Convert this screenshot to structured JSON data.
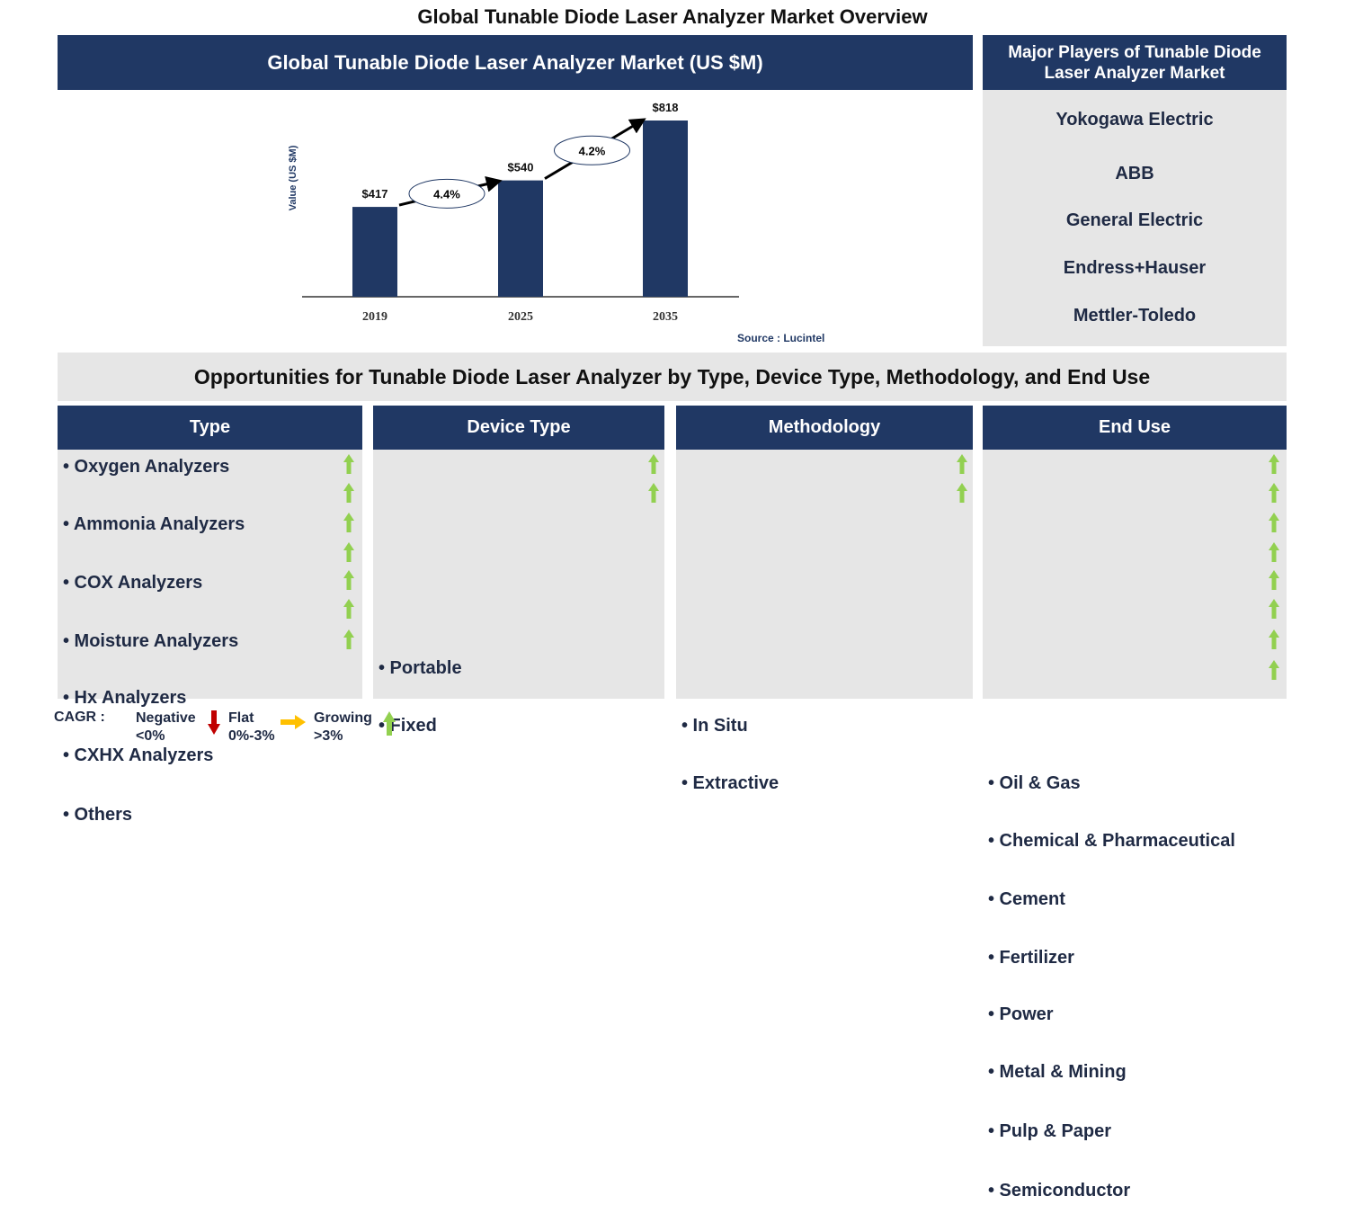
{
  "title": "Global Tunable Diode Laser Analyzer Market Overview",
  "chart_panel": {
    "header": "Global Tunable Diode Laser Analyzer Market (US $M)",
    "source": "Source : Lucintel"
  },
  "chart_data": {
    "type": "bar",
    "title": "Global Tunable Diode Laser Analyzer Market (US $M)",
    "ylabel": "Value (US $M)",
    "xlabel": "",
    "categories": [
      "2019",
      "2025",
      "2035"
    ],
    "values": [
      417,
      540,
      818
    ],
    "value_labels": [
      "$417",
      "$540",
      "$818"
    ],
    "cagr_annotations": [
      {
        "from": "2019",
        "to": "2025",
        "label": "4.4%"
      },
      {
        "from": "2025",
        "to": "2035",
        "label": "4.2%"
      }
    ],
    "ylim": [
      0,
      818
    ],
    "grid": false,
    "bar_color": "#203864"
  },
  "players": {
    "header": "Major Players of Tunable Diode Laser Analyzer Market",
    "items": [
      "Yokogawa Electric",
      "ABB",
      "General Electric",
      "Endress+Hauser",
      "Mettler-Toledo"
    ]
  },
  "opportunities": {
    "header": "Opportunities for Tunable Diode Laser Analyzer by Type, Device Type, Methodology, and End Use",
    "columns": [
      {
        "title": "Type",
        "items": [
          "Oxygen Analyzers",
          "Ammonia Analyzers",
          "COX Analyzers",
          "Moisture Analyzers",
          "Hx Analyzers",
          "CXHX Analyzers",
          "Others"
        ]
      },
      {
        "title": "Device Type",
        "items": [
          "Portable",
          "Fixed"
        ]
      },
      {
        "title": "Methodology",
        "items": [
          "In Situ",
          "Extractive"
        ]
      },
      {
        "title": "End Use",
        "items": [
          "Oil & Gas",
          "Chemical & Pharmaceutical",
          "Cement",
          "Fertilizer",
          "Power",
          "Metal & Mining",
          "Pulp & Paper",
          "Semiconductor"
        ]
      }
    ],
    "trend": "growing"
  },
  "legend": {
    "label": "CAGR :",
    "negative": "Negative",
    "negative_range": "<0%",
    "flat": "Flat",
    "flat_range": "0%-3%",
    "growing": "Growing",
    "growing_range": ">3%",
    "colors": {
      "negative": "#c00000",
      "flat": "#ffc000",
      "growing": "#92d050"
    }
  }
}
